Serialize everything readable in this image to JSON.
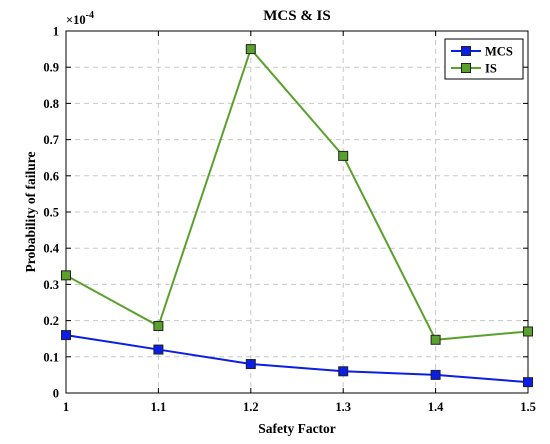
{
  "chart_data": {
    "type": "line",
    "title": "MCS & IS",
    "xlabel": "Safety Factor",
    "ylabel": "Probability of failure",
    "y_multiplier_label": "×10",
    "y_multiplier_exponent": "-4",
    "x": [
      1,
      1.1,
      1.2,
      1.3,
      1.4,
      1.5
    ],
    "x_tick_labels": [
      "1",
      "1.1",
      "1.2",
      "1.3",
      "1.4",
      "1.5"
    ],
    "y_tick_values": [
      0,
      0.1,
      0.2,
      0.3,
      0.4,
      0.5,
      0.6,
      0.7,
      0.8,
      0.9,
      1
    ],
    "y_tick_labels": [
      "0",
      "0.1",
      "0.2",
      "0.3",
      "0.4",
      "0.5",
      "0.6",
      "0.7",
      "0.8",
      "0.9",
      "1"
    ],
    "xlim": [
      1,
      1.5
    ],
    "ylim": [
      0,
      1
    ],
    "grid": true,
    "legend_position": "top-right",
    "series": [
      {
        "name": "MCS",
        "color": "#0a1ee6",
        "values": [
          0.16,
          0.12,
          0.08,
          0.06,
          0.05,
          0.03
        ]
      },
      {
        "name": "IS",
        "color": "#5aa02c",
        "values": [
          0.325,
          0.185,
          0.95,
          0.655,
          0.147,
          0.17
        ]
      }
    ]
  }
}
